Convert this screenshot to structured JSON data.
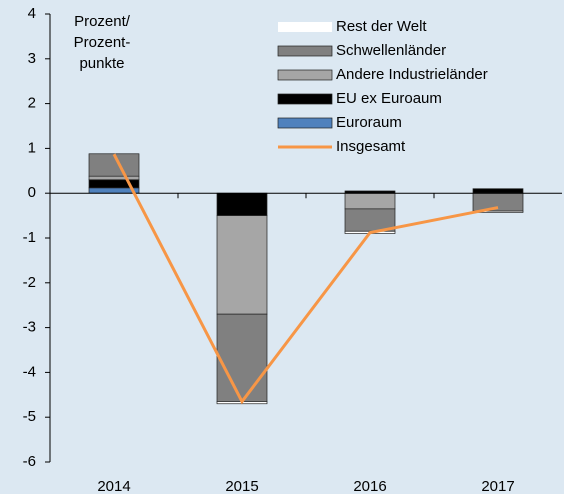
{
  "chart_data": {
    "type": "bar",
    "annotation": [
      "Prozent/",
      "Prozent-",
      "punkte"
    ],
    "categories": [
      "2014",
      "2015",
      "2016",
      "2017"
    ],
    "series": [
      {
        "name": "Euroraum",
        "color": "#4f81bd",
        "values": [
          0.12,
          0,
          0,
          0
        ]
      },
      {
        "name": "EU ex Euroaum",
        "color": "#000000",
        "values": [
          0.18,
          -0.5,
          0.05,
          0.1
        ]
      },
      {
        "name": "Andere Industrieländer",
        "color": "#a6a6a6",
        "values": [
          0.08,
          -2.2,
          -0.35,
          0
        ]
      },
      {
        "name": "Schwellenländer",
        "color": "#808080",
        "values": [
          0.5,
          -1.95,
          -0.5,
          -0.4
        ]
      },
      {
        "name": "Rest der Welt",
        "color": "#ffffff",
        "values": [
          0,
          -0.05,
          -0.05,
          -0.03
        ]
      }
    ],
    "line": {
      "name": "Insgesamt",
      "color": "#f79646",
      "values": [
        0.87,
        -4.65,
        -0.88,
        -0.32
      ]
    },
    "ylim": [
      -6,
      4
    ],
    "yticks": [
      -6,
      -5,
      -4,
      -3,
      -2,
      -1,
      0,
      1,
      2,
      3,
      4
    ]
  }
}
